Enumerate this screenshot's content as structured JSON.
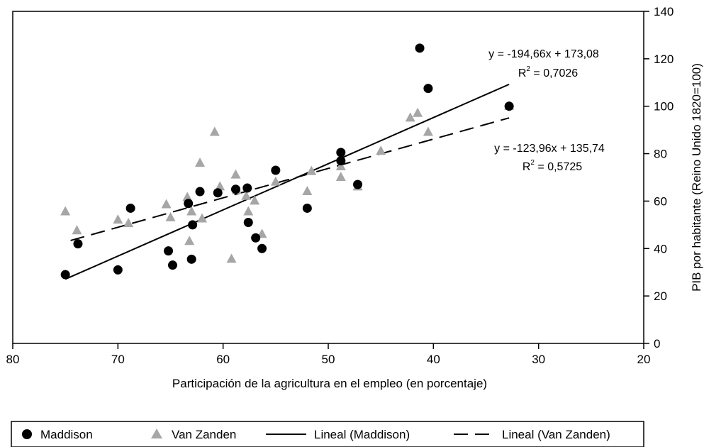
{
  "chart_data": {
    "type": "scatter",
    "xlabel": "Participación de la agricultura en el empleo (en porcentaje)",
    "ylabel": "PIB por habitante (Reino Unido 1820=100)",
    "xlim": [
      80,
      20
    ],
    "ylim": [
      0,
      140
    ],
    "x_ticks": [
      80,
      70,
      60,
      50,
      40,
      30,
      20
    ],
    "y_ticks": [
      0,
      20,
      40,
      60,
      80,
      100,
      120,
      140
    ],
    "x_reversed": true,
    "y_axis_side": "right",
    "grid": false,
    "legend_position": "bottom",
    "series": [
      {
        "name": "Maddison",
        "marker": "circle",
        "color": "#000000",
        "points": [
          [
            75,
            29
          ],
          [
            73.8,
            42
          ],
          [
            70,
            31
          ],
          [
            68.8,
            57
          ],
          [
            65.2,
            39
          ],
          [
            64.8,
            33
          ],
          [
            63.3,
            59
          ],
          [
            63,
            35.5
          ],
          [
            62.9,
            50
          ],
          [
            62.2,
            64
          ],
          [
            60.5,
            63.5
          ],
          [
            58.8,
            65
          ],
          [
            57.7,
            65.5
          ],
          [
            57.6,
            51
          ],
          [
            56.9,
            44.5
          ],
          [
            56.3,
            40
          ],
          [
            55,
            73
          ],
          [
            52,
            57
          ],
          [
            48.8,
            80.5
          ],
          [
            48.8,
            77
          ],
          [
            47.2,
            67
          ],
          [
            41.3,
            124.5
          ],
          [
            40.5,
            107.5
          ],
          [
            32.8,
            100
          ]
        ]
      },
      {
        "name": "Van Zanden",
        "marker": "triangle",
        "color": "#a6a6a6",
        "points": [
          [
            75,
            55.5
          ],
          [
            73.9,
            47.5
          ],
          [
            70,
            52
          ],
          [
            69,
            50.5
          ],
          [
            65.4,
            58.5
          ],
          [
            65,
            53
          ],
          [
            63.4,
            61.5
          ],
          [
            63.2,
            43
          ],
          [
            63,
            55.5
          ],
          [
            62.2,
            76
          ],
          [
            62,
            52.5
          ],
          [
            60.8,
            89
          ],
          [
            60.3,
            66
          ],
          [
            59.2,
            35.5
          ],
          [
            58.8,
            71
          ],
          [
            58.7,
            64.5
          ],
          [
            57.8,
            62
          ],
          [
            57.6,
            55.5
          ],
          [
            57,
            60
          ],
          [
            56.3,
            46
          ],
          [
            55,
            68
          ],
          [
            52,
            64
          ],
          [
            51.6,
            72.5
          ],
          [
            48.8,
            74.5
          ],
          [
            48.8,
            70
          ],
          [
            47.2,
            66
          ],
          [
            45,
            81
          ],
          [
            42.2,
            95
          ],
          [
            41.5,
            97
          ],
          [
            40.5,
            89
          ],
          [
            32.8,
            100
          ]
        ]
      },
      {
        "name": "Lineal (Maddison)",
        "type": "line",
        "style": "solid",
        "color": "#000000",
        "slope": -194.66,
        "intercept": 173.08,
        "x_range": [
          75,
          32.8
        ]
      },
      {
        "name": "Lineal (Van Zanden)",
        "type": "line",
        "style": "dashed",
        "color": "#000000",
        "slope": -123.96,
        "intercept": 135.74,
        "x_range": [
          74.5,
          32.8
        ]
      }
    ],
    "annotations": [
      {
        "line1": "y = -194,66x + 173,08",
        "line2_base": "R",
        "line2_sup": "2",
        "line2_rest": " = 0,7026"
      },
      {
        "line1": "y = -123,96x + 135,74",
        "line2_base": "R",
        "line2_sup": "2",
        "line2_rest": " = 0,5725"
      }
    ]
  }
}
